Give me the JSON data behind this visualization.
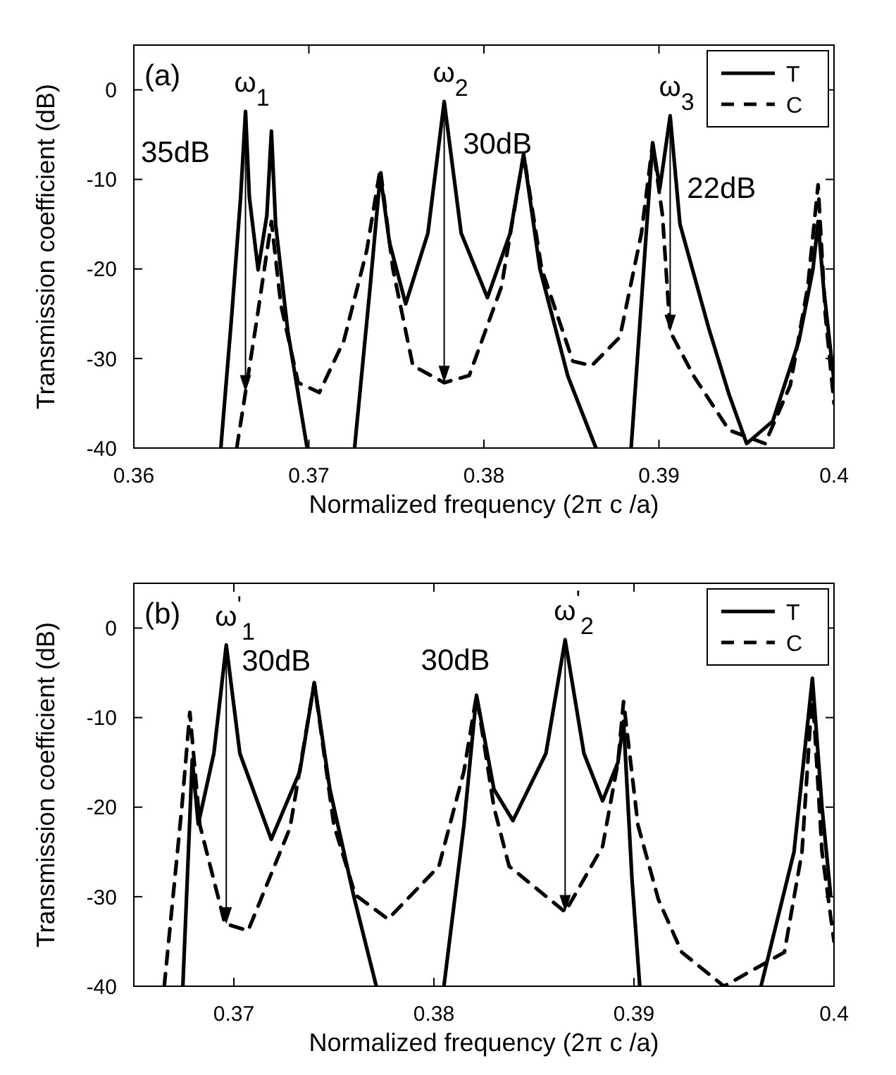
{
  "chart_data": [
    {
      "type": "line",
      "xlabel": "Normalized frequency (2π c /a)",
      "ylabel": "Transmission coefficient (dB)",
      "xlim": [
        0.36,
        0.4
      ],
      "xticks": [
        0.36,
        0.37,
        0.38,
        0.39,
        0.4
      ],
      "ylim": [
        -40,
        5
      ],
      "yticks": [
        -40,
        -30,
        -20,
        -10,
        0
      ],
      "grid": false,
      "legend": "top right",
      "series": [
        {
          "name": "T",
          "color": "#000000",
          "line_style": "solid",
          "x": [
            0.36497,
            0.3656,
            0.3661,
            0.36638,
            0.3666,
            0.3671,
            0.3676,
            0.36786,
            0.3681,
            0.3688,
            0.3699,
            0.371,
            0.37261,
            0.3735,
            0.37408,
            0.3746,
            0.37553,
            0.3768,
            0.37773,
            0.3787,
            0.3802,
            0.3815,
            0.38227,
            0.3832,
            0.3848,
            0.3864,
            0.3874,
            0.38841,
            0.3892,
            0.38964,
            0.39005,
            0.39064,
            0.3912,
            0.39284,
            0.394,
            0.39501,
            0.3965,
            0.398,
            0.3988,
            0.39909,
            0.3994,
            0.39997
          ],
          "values": [
            -40,
            -25,
            -12,
            -2.4,
            -12,
            -20.1,
            -14,
            -4.6,
            -15,
            -27,
            -40,
            null,
            -40,
            -22,
            -9.5,
            -17,
            -23.9,
            -16,
            -1.3,
            -16,
            -23.2,
            -16,
            -7.2,
            -20,
            -32,
            -40,
            null,
            -40,
            -18,
            -5.9,
            -11,
            -2.9,
            -15,
            -26.6,
            -34,
            -39.5,
            -37,
            -28,
            -20,
            -14.7,
            -22,
            -32
          ]
        },
        {
          "name": "C",
          "color": "#000000",
          "line_style": "dashed",
          "x": [
            0.36588,
            0.367,
            0.36786,
            0.3684,
            0.36939,
            0.3706,
            0.372,
            0.3733,
            0.37408,
            0.3748,
            0.37594,
            0.37773,
            0.37916,
            0.381,
            0.38227,
            0.3833,
            0.38508,
            0.38616,
            0.38777,
            0.389,
            0.38964,
            0.3902,
            0.39064,
            0.392,
            0.394,
            0.39606,
            0.3975,
            0.3985,
            0.39909,
            0.3995,
            0.4
          ],
          "values": [
            -40,
            -26,
            -14.7,
            -24,
            -32.7,
            -33.8,
            -28,
            -18,
            -8.8,
            -20,
            -30.8,
            -32.7,
            -31.9,
            -22,
            -7.2,
            -20,
            -30.3,
            -30.8,
            -27.6,
            -16,
            -6,
            -14,
            -27,
            -32,
            -38,
            -39.5,
            -33,
            -22,
            -10.6,
            -25,
            -35
          ]
        }
      ],
      "annotations": [
        "(a)",
        {
          "text": "ω$_{1}$",
          "x": 0.36638,
          "y": -2.4
        },
        "35dB",
        {
          "text": "ω$_{2}$",
          "x": 0.37773,
          "y": -1.3
        },
        "30dB",
        {
          "text": "ω$_{3}$",
          "x": 0.39064,
          "y": -2.9
        },
        "22dB"
      ]
    },
    {
      "type": "line",
      "xlabel": "Normalized frequency (2π c /a)",
      "ylabel": "Transmission coefficient (dB)",
      "xlim": [
        0.365,
        0.4
      ],
      "xticks": [
        0.37,
        0.38,
        0.39,
        0.4
      ],
      "ylim": [
        -40,
        5
      ],
      "yticks": [
        -40,
        -30,
        -20,
        -10,
        0
      ],
      "grid": false,
      "legend": "top right",
      "series": [
        {
          "name": "T",
          "color": "#000000",
          "line_style": "solid",
          "x": [
            0.36745,
            0.36792,
            0.36822,
            0.369,
            0.36962,
            0.3703,
            0.37187,
            0.3733,
            0.37402,
            0.3748,
            0.376,
            0.37712,
            0.379,
            0.3805,
            0.3815,
            0.38213,
            0.383,
            0.38395,
            0.3856,
            0.38656,
            0.3875,
            0.38843,
            0.3892,
            0.38948,
            0.3899,
            0.39029,
            0.393,
            0.39635,
            0.398,
            0.39892,
            0.3994,
            0.39983
          ],
          "values": [
            -40,
            -14.7,
            -21.9,
            -14,
            -1.9,
            -14,
            -23.6,
            -16,
            -6.1,
            -18,
            -30,
            -40,
            null,
            -40,
            -22,
            -7.5,
            -18,
            -21.5,
            -14,
            -1.3,
            -14,
            -19.3,
            -15,
            -10.4,
            -28,
            -40,
            null,
            -40,
            -25,
            -5.6,
            -20,
            -29.8
          ]
        },
        {
          "name": "C",
          "color": "#000000",
          "line_style": "dashed",
          "x": [
            0.36652,
            0.3674,
            0.3678,
            0.3683,
            0.36955,
            0.37071,
            0.37281,
            0.37402,
            0.375,
            0.37607,
            0.37771,
            0.38025,
            0.3815,
            0.38213,
            0.383,
            0.38376,
            0.38656,
            0.38843,
            0.3892,
            0.38948,
            0.3902,
            0.39122,
            0.39239,
            0.3945,
            0.39752,
            0.3984,
            0.39892,
            0.3994,
            0.4
          ],
          "values": [
            -40,
            -20,
            -9.4,
            -22,
            -33,
            -33.8,
            -22.3,
            -6.1,
            -22,
            -29.8,
            -32.5,
            -26.6,
            -16,
            -7.5,
            -20,
            -26.6,
            -31.7,
            -24.4,
            -15,
            -8.2,
            -22,
            -30.3,
            -36.2,
            -40,
            -36.2,
            -25,
            -7,
            -25,
            -35
          ]
        }
      ],
      "annotations": [
        "(b)",
        {
          "text": "ω$^{'}$$_{1}$",
          "x": 0.36962,
          "y": -1.9
        },
        {
          "text": "30dB",
          "x": 0.36962,
          "y": -1.9
        },
        "30dB",
        {
          "text": "ω$^{'}$$_{2}$",
          "x": 0.38656,
          "y": -1.3
        }
      ]
    }
  ]
}
